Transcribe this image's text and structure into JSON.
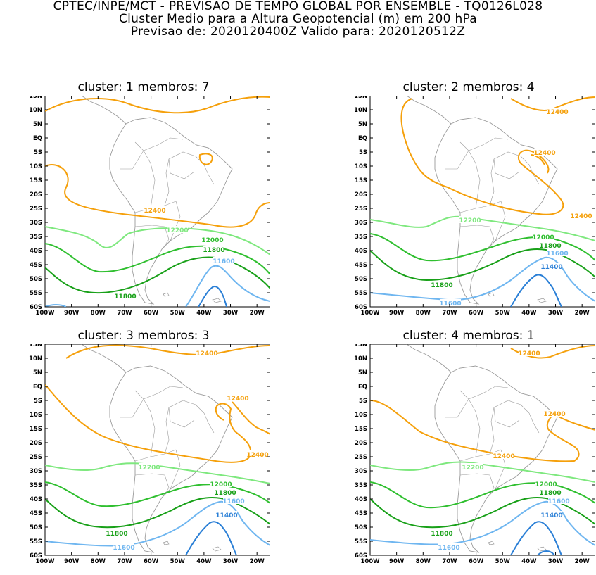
{
  "header": {
    "line1": "CPTEC/INPE/MCT - PREVISAO DE TEMPO GLOBAL POR ENSEMBLE - TQ0126L028",
    "line2": "Cluster Medio para a Altura Geopotencial (m) em 200 hPa",
    "line3": "Previsao de: 2020120400Z   Valido para: 2020120512Z"
  },
  "colors": {
    "c12400": "#f5a00b",
    "c12200": "#7ee87e",
    "c12000": "#2fbf2f",
    "c11800": "#18a018",
    "c11600": "#6fb6f0",
    "c11400": "#2a7fd6",
    "land": "#9a9a9a"
  },
  "axes": {
    "y_ticks": [
      "15N",
      "10N",
      "5N",
      "EQ",
      "5S",
      "10S",
      "15S",
      "20S",
      "25S",
      "30S",
      "35S",
      "40S",
      "45S",
      "50S",
      "55S",
      "60S"
    ],
    "x_ticks": [
      "100W",
      "90W",
      "80W",
      "70W",
      "60W",
      "50W",
      "40W",
      "30W",
      "20W"
    ]
  },
  "panels": [
    {
      "title": "cluster: 1   membros: 7",
      "labels": [
        {
          "text": "12400",
          "level": "12400"
        },
        {
          "text": "12200",
          "level": "12200"
        },
        {
          "text": "12000",
          "level": "12000"
        },
        {
          "text": "11800",
          "level": "11800"
        },
        {
          "text": "11800",
          "level": "11800"
        },
        {
          "text": "11600",
          "level": "11600"
        }
      ]
    },
    {
      "title": "cluster: 2   membros: 4",
      "labels": [
        {
          "text": "12400",
          "level": "12400"
        },
        {
          "text": "12400",
          "level": "12400"
        },
        {
          "text": "12400",
          "level": "12400"
        },
        {
          "text": "12200",
          "level": "12200"
        },
        {
          "text": "12000",
          "level": "12000"
        },
        {
          "text": "11800",
          "level": "11800"
        },
        {
          "text": "11800",
          "level": "11800"
        },
        {
          "text": "11600",
          "level": "11600"
        },
        {
          "text": "11600",
          "level": "11600"
        },
        {
          "text": "11400",
          "level": "11400"
        }
      ]
    },
    {
      "title": "cluster: 3   membros: 3",
      "labels": [
        {
          "text": "12400",
          "level": "12400"
        },
        {
          "text": "12400",
          "level": "12400"
        },
        {
          "text": "12400",
          "level": "12400"
        },
        {
          "text": "12200",
          "level": "12200"
        },
        {
          "text": "12000",
          "level": "12000"
        },
        {
          "text": "11800",
          "level": "11800"
        },
        {
          "text": "11800",
          "level": "11800"
        },
        {
          "text": "11600",
          "level": "11600"
        },
        {
          "text": "11600",
          "level": "11600"
        },
        {
          "text": "11400",
          "level": "11400"
        }
      ]
    },
    {
      "title": "cluster: 4   membros: 1",
      "labels": [
        {
          "text": "12400",
          "level": "12400"
        },
        {
          "text": "12400",
          "level": "12400"
        },
        {
          "text": "12400",
          "level": "12400"
        },
        {
          "text": "12200",
          "level": "12200"
        },
        {
          "text": "12000",
          "level": "12000"
        },
        {
          "text": "11800",
          "level": "11800"
        },
        {
          "text": "11800",
          "level": "11800"
        },
        {
          "text": "11600",
          "level": "11600"
        },
        {
          "text": "11600",
          "level": "11600"
        },
        {
          "text": "11400",
          "level": "11400"
        }
      ]
    }
  ]
}
